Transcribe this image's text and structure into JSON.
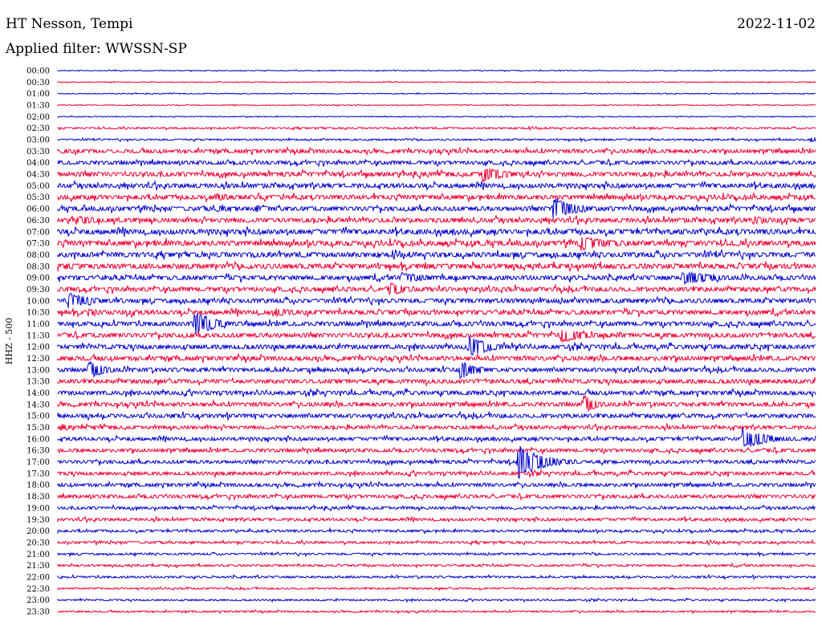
{
  "header": {
    "station": "HT Nesson, Tempi",
    "date": "2022-11-02",
    "filter_label": "Applied filter: WWSSN-SP"
  },
  "chart_data": {
    "type": "line",
    "title": "HT Nesson, Tempi",
    "subtitle": "Applied filter: WWSSN-SP",
    "ylabel": "HHZ - 500",
    "xlabel": "",
    "row_labels": [
      "00:00",
      "00:30",
      "01:00",
      "01:30",
      "02:00",
      "02:30",
      "03:00",
      "03:30",
      "04:00",
      "04:30",
      "05:00",
      "05:30",
      "06:00",
      "06:30",
      "07:00",
      "07:30",
      "08:00",
      "08:30",
      "09:00",
      "09:30",
      "10:00",
      "10:30",
      "11:00",
      "11:30",
      "12:00",
      "12:30",
      "13:00",
      "13:30",
      "14:00",
      "14:30",
      "15:00",
      "15:30",
      "16:00",
      "16:30",
      "17:00",
      "17:30",
      "18:00",
      "18:30",
      "19:00",
      "19:30",
      "20:00",
      "20:30",
      "21:00",
      "21:30",
      "22:00",
      "22:30",
      "23:00",
      "23:30"
    ],
    "colors": {
      "even_rows": "#0000cc",
      "odd_rows": "#ee0033"
    },
    "grid": false,
    "noise_level": [
      0.5,
      0.5,
      0.5,
      0.5,
      0.5,
      1,
      1,
      2.2,
      2.2,
      2.6,
      2.6,
      2.6,
      2.6,
      2.6,
      3,
      3,
      3,
      3,
      2.6,
      2.6,
      2.6,
      2.6,
      2.6,
      2.6,
      2.6,
      2.6,
      2.4,
      2.4,
      2.4,
      2.4,
      2.4,
      2,
      2,
      2,
      2,
      2,
      2,
      2,
      1.6,
      1.6,
      1.4,
      1.4,
      1.2,
      1.2,
      1.2,
      1,
      1,
      1
    ],
    "events": [
      {
        "row": 6,
        "minute": 29.8,
        "amp": 4,
        "dur": 0.5
      },
      {
        "row": 7,
        "minute": 0.2,
        "amp": 3,
        "dur": 1
      },
      {
        "row": 9,
        "minute": 16.8,
        "amp": 11,
        "dur": 0.9
      },
      {
        "row": 11,
        "minute": 6.2,
        "amp": 5,
        "dur": 1.2
      },
      {
        "row": 12,
        "minute": 6.3,
        "amp": 4,
        "dur": 0.7
      },
      {
        "row": 12,
        "minute": 7.8,
        "amp": 5,
        "dur": 0.8
      },
      {
        "row": 12,
        "minute": 19.6,
        "amp": 16,
        "dur": 0.9
      },
      {
        "row": 13,
        "minute": 0.7,
        "amp": 6,
        "dur": 1.2
      },
      {
        "row": 13,
        "minute": 27.5,
        "amp": 5,
        "dur": 1.5
      },
      {
        "row": 15,
        "minute": 20.7,
        "amp": 10,
        "dur": 1.2
      },
      {
        "row": 17,
        "minute": 0.3,
        "amp": 4,
        "dur": 2
      },
      {
        "row": 18,
        "minute": 13.6,
        "amp": 7,
        "dur": 1.2
      },
      {
        "row": 18,
        "minute": 24.7,
        "amp": 9,
        "dur": 1.4
      },
      {
        "row": 19,
        "minute": 13.1,
        "amp": 9,
        "dur": 0.8
      },
      {
        "row": 20,
        "minute": 0.4,
        "amp": 11,
        "dur": 1
      },
      {
        "row": 21,
        "minute": 1.2,
        "amp": 5,
        "dur": 0.7
      },
      {
        "row": 21,
        "minute": 8.6,
        "amp": 6,
        "dur": 0.8
      },
      {
        "row": 22,
        "minute": 5.4,
        "amp": 17,
        "dur": 0.8
      },
      {
        "row": 23,
        "minute": 19.9,
        "amp": 10,
        "dur": 1
      },
      {
        "row": 24,
        "minute": 16.3,
        "amp": 13,
        "dur": 0.9
      },
      {
        "row": 26,
        "minute": 1.2,
        "amp": 12,
        "dur": 0.7
      },
      {
        "row": 26,
        "minute": 15.9,
        "amp": 12,
        "dur": 0.7
      },
      {
        "row": 29,
        "minute": 20.8,
        "amp": 13,
        "dur": 0.5
      },
      {
        "row": 31,
        "minute": 0.1,
        "amp": 5,
        "dur": 0.6
      },
      {
        "row": 32,
        "minute": 27.1,
        "amp": 14,
        "dur": 1
      },
      {
        "row": 34,
        "minute": 18.2,
        "amp": 22,
        "dur": 1
      }
    ]
  }
}
